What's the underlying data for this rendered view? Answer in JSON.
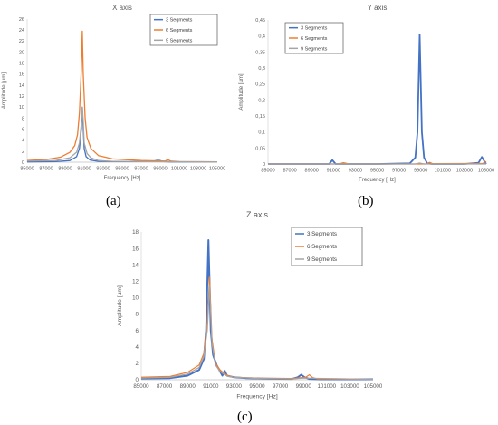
{
  "chart_data": [
    {
      "type": "line",
      "title": "X axis",
      "xlabel": "Frequency [Hz]",
      "ylabel": "Amplitude [µm]",
      "xlim": [
        85000,
        105000
      ],
      "ylim": [
        0,
        26
      ],
      "x_ticks": [
        "85000",
        "87000",
        "89000",
        "91000",
        "93000",
        "95000",
        "97000",
        "99000",
        "101000",
        "103000",
        "105000"
      ],
      "y_ticks": [
        "0",
        "2",
        "4",
        "6",
        "8",
        "10",
        "12",
        "14",
        "16",
        "18",
        "20",
        "22",
        "24",
        "26"
      ],
      "legend_position": "top-right",
      "grid": false,
      "series": [
        {
          "name": "3 Segments",
          "color": "#4472c4",
          "x": [
            85000,
            88000,
            89500,
            90200,
            90500,
            90700,
            90800,
            90900,
            91000,
            91200,
            91600,
            92500,
            94000,
            98000,
            98700,
            99000,
            99300,
            100000,
            105000
          ],
          "y": [
            0.05,
            0.1,
            0.3,
            1.0,
            2.5,
            6.0,
            10.0,
            6.0,
            2.5,
            1.0,
            0.4,
            0.15,
            0.1,
            0.1,
            0.35,
            0.3,
            0.1,
            0.05,
            0.05
          ]
        },
        {
          "name": "6 Segments",
          "color": "#ed7d31",
          "x": [
            85000,
            87000,
            88500,
            89500,
            90000,
            90300,
            90500,
            90700,
            90800,
            90900,
            91100,
            91300,
            91700,
            92500,
            94000,
            97000,
            99500,
            99800,
            100100,
            101000,
            105000
          ],
          "y": [
            0.3,
            0.5,
            0.9,
            1.8,
            3.0,
            5.0,
            9.0,
            17.0,
            23.8,
            16.0,
            8.0,
            4.5,
            2.5,
            1.2,
            0.6,
            0.3,
            0.2,
            0.45,
            0.2,
            0.1,
            0.05
          ]
        },
        {
          "name": "9 Segments",
          "color": "#a5a5a5",
          "x": [
            85000,
            88000,
            89500,
            90200,
            90500,
            90700,
            90800,
            90900,
            91000,
            91300,
            91700,
            92500,
            94000,
            98000,
            105000
          ],
          "y": [
            0.2,
            0.3,
            0.8,
            1.8,
            3.5,
            7.0,
            10.0,
            7.5,
            3.5,
            1.6,
            0.8,
            0.3,
            0.15,
            0.1,
            0.05
          ]
        }
      ]
    },
    {
      "type": "line",
      "title": "Y axis",
      "xlabel": "Frequency [Hz]",
      "ylabel": "Amplitude [µm]",
      "xlim": [
        85000,
        105000
      ],
      "ylim": [
        0,
        0.45
      ],
      "x_ticks": [
        "85000",
        "87000",
        "89000",
        "91000",
        "93000",
        "95000",
        "97000",
        "99000",
        "101000",
        "103000",
        "105000"
      ],
      "y_ticks": [
        "0",
        "0,05",
        "0,1",
        "0,15",
        "0,2",
        "0,25",
        "0,3",
        "0,35",
        "0,4",
        "0,45"
      ],
      "legend_position": "top-left",
      "grid": false,
      "series": [
        {
          "name": "3 Segments",
          "color": "#4472c4",
          "x": [
            85000,
            89000,
            90600,
            90900,
            91200,
            91500,
            92500,
            95000,
            98000,
            98500,
            98700,
            98900,
            99100,
            99300,
            99600,
            100000,
            103000,
            104300,
            104600,
            104900,
            105000
          ],
          "y": [
            0,
            0,
            0,
            0.012,
            0,
            0,
            0,
            0,
            0.002,
            0.02,
            0.1,
            0.405,
            0.1,
            0.02,
            0.002,
            0,
            0,
            0.004,
            0.022,
            0.004,
            0
          ],
          "line_width": 1.8
        },
        {
          "name": "6 Segments",
          "color": "#ed7d31",
          "x": [
            85000,
            91500,
            91900,
            92200,
            92500,
            99500,
            99800,
            100100,
            104700,
            105000
          ],
          "y": [
            0,
            0,
            0.004,
            0.002,
            0,
            0,
            0.005,
            0.001,
            0.002,
            0.008
          ],
          "line_width": 1.2
        },
        {
          "name": "9 Segments",
          "color": "#a5a5a5",
          "x": [
            85000,
            98500,
            98900,
            99300,
            105000
          ],
          "y": [
            0,
            0,
            0.003,
            0,
            0
          ],
          "line_width": 1.2
        }
      ]
    },
    {
      "type": "line",
      "title": "Z axis",
      "xlabel": "Frequency [Hz]",
      "ylabel": "Amplitude [µm]",
      "xlim": [
        85000,
        105000
      ],
      "ylim": [
        0,
        18
      ],
      "x_ticks": [
        "85000",
        "87000",
        "89000",
        "91000",
        "93000",
        "95000",
        "97000",
        "99000",
        "101000",
        "103000",
        "105000"
      ],
      "y_ticks": [
        "0",
        "2",
        "4",
        "6",
        "8",
        "10",
        "12",
        "14",
        "16",
        "18"
      ],
      "legend_position": "top-right",
      "grid": false,
      "series": [
        {
          "name": "3 Segments",
          "color": "#4472c4",
          "x": [
            85000,
            87500,
            89000,
            90000,
            90400,
            90600,
            90800,
            91000,
            91200,
            91500,
            92000,
            92200,
            92400,
            93000,
            94000,
            96000,
            98000,
            98500,
            98800,
            99100,
            99500,
            100500,
            105000
          ],
          "y": [
            0.15,
            0.2,
            0.5,
            1.2,
            2.5,
            6.0,
            17.0,
            6.0,
            3.0,
            1.8,
            0.5,
            1.1,
            0.5,
            0.3,
            0.2,
            0.12,
            0.1,
            0.3,
            0.6,
            0.3,
            0.1,
            0.05,
            0.05
          ],
          "line_width": 2.0
        },
        {
          "name": "6 Segments",
          "color": "#ed7d31",
          "x": [
            85000,
            87500,
            89000,
            90000,
            90400,
            90700,
            90900,
            91100,
            91400,
            91800,
            92200,
            92500,
            93000,
            95000,
            98000,
            99200,
            99500,
            99800,
            100200,
            105000
          ],
          "y": [
            0.3,
            0.4,
            0.9,
            1.8,
            3.2,
            7.0,
            12.5,
            5.0,
            2.0,
            1.2,
            0.7,
            0.5,
            0.3,
            0.2,
            0.15,
            0.3,
            0.6,
            0.25,
            0.1,
            0.05
          ],
          "line_width": 1.2
        },
        {
          "name": "9 Segments",
          "color": "#a5a5a5",
          "x": [
            85000,
            87500,
            89000,
            90000,
            90400,
            90700,
            90900,
            91100,
            91400,
            91800,
            92200,
            92500,
            93000,
            95000,
            98000,
            99000,
            105000
          ],
          "y": [
            0.2,
            0.3,
            0.7,
            1.5,
            2.8,
            6.0,
            11.5,
            4.5,
            1.8,
            1.0,
            0.6,
            0.4,
            0.3,
            0.15,
            0.1,
            0.2,
            0.05
          ],
          "line_width": 1.2
        }
      ]
    }
  ],
  "captions": [
    "(a)",
    "(b)",
    "(c)"
  ]
}
